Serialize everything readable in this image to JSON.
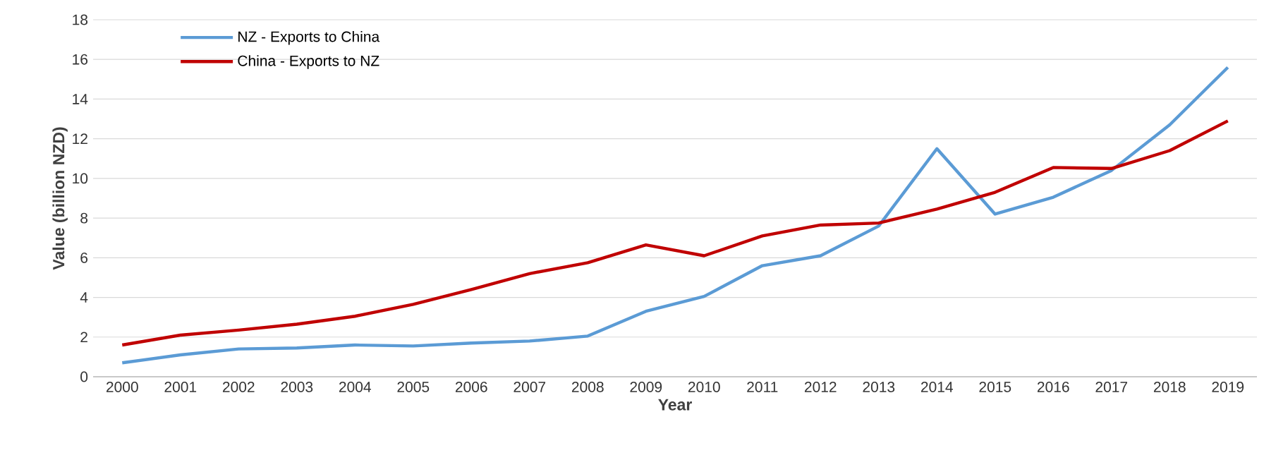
{
  "chart_data": {
    "type": "line",
    "xlabel": "Year",
    "ylabel": "Value (billion NZD)",
    "categories": [
      "2000",
      "2001",
      "2002",
      "2003",
      "2004",
      "2005",
      "2006",
      "2007",
      "2008",
      "2009",
      "2010",
      "2011",
      "2012",
      "2013",
      "2014",
      "2015",
      "2016",
      "2017",
      "2018",
      "2019"
    ],
    "series": [
      {
        "name": "NZ - Exports to China",
        "color": "#5b9bd5",
        "values": [
          0.7,
          1.1,
          1.4,
          1.45,
          1.6,
          1.55,
          1.7,
          1.8,
          2.05,
          3.3,
          4.05,
          5.6,
          6.1,
          7.6,
          11.5,
          8.2,
          9.05,
          10.4,
          12.7,
          15.6
        ]
      },
      {
        "name": "China - Exports to NZ",
        "color": "#c00000",
        "values": [
          1.6,
          2.1,
          2.35,
          2.65,
          3.05,
          3.65,
          4.4,
          5.2,
          5.75,
          6.65,
          6.1,
          7.1,
          7.65,
          7.75,
          8.45,
          9.3,
          10.55,
          10.5,
          11.4,
          12.9
        ]
      }
    ],
    "ylim": [
      0,
      18
    ],
    "yticks": [
      0,
      2,
      4,
      6,
      8,
      10,
      12,
      14,
      16,
      18
    ],
    "grid": "y",
    "legend": "top left",
    "marker": "none",
    "line_style": "solid"
  }
}
